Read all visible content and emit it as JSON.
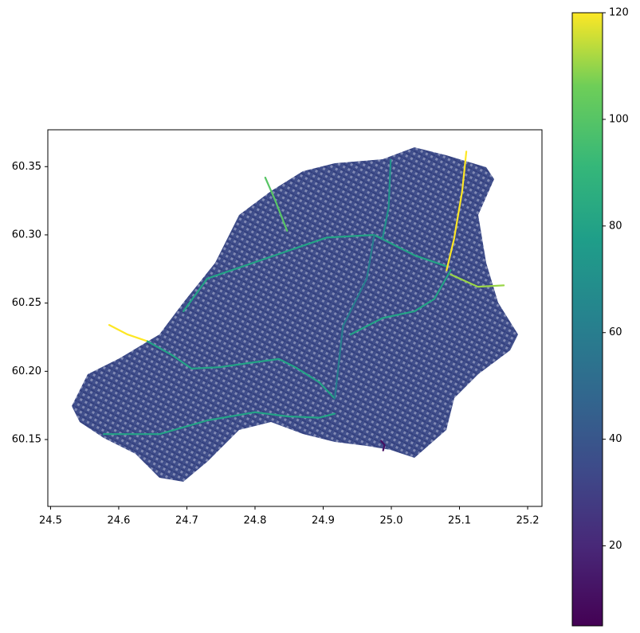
{
  "chart_data": {
    "type": "roads",
    "xlim": [
      24.496,
      25.221
    ],
    "ylim": [
      60.101,
      60.377
    ],
    "xticks": [
      {
        "value": 24.5,
        "label": "24.5"
      },
      {
        "value": 24.6,
        "label": "24.6"
      },
      {
        "value": 24.7,
        "label": "24.7"
      },
      {
        "value": 24.8,
        "label": "24.8"
      },
      {
        "value": 24.9,
        "label": "24.9"
      },
      {
        "value": 25.0,
        "label": "25.0"
      },
      {
        "value": 25.1,
        "label": "25.1"
      },
      {
        "value": 25.2,
        "label": "25.2"
      }
    ],
    "yticks": [
      {
        "value": 60.15,
        "label": "60.15"
      },
      {
        "value": 60.2,
        "label": "60.20"
      },
      {
        "value": 60.25,
        "label": "60.25"
      },
      {
        "value": 60.3,
        "label": "60.30"
      },
      {
        "value": 60.35,
        "label": "60.35"
      }
    ],
    "clim": [
      5,
      120
    ],
    "cticks": [
      20,
      40,
      60,
      80,
      100,
      120
    ],
    "colormap": "viridis",
    "roads": [
      {
        "speed": 120,
        "x": [
          24.586,
          24.613,
          24.642
        ],
        "y": [
          60.234,
          60.227,
          60.222
        ]
      },
      {
        "speed": 80,
        "x": [
          24.642,
          24.678,
          24.707,
          24.748,
          24.789,
          24.835,
          24.859,
          24.894,
          24.917
        ],
        "y": [
          60.222,
          60.212,
          60.202,
          60.203,
          60.206,
          60.209,
          60.203,
          60.192,
          60.18
        ]
      },
      {
        "speed": 80,
        "x": [
          24.578,
          24.66,
          24.73,
          24.8,
          24.847,
          24.894,
          24.917
        ],
        "y": [
          60.154,
          60.154,
          60.164,
          60.17,
          60.167,
          60.166,
          60.169
        ]
      },
      {
        "speed": 80,
        "x": [
          24.695,
          24.73,
          24.777,
          24.835,
          24.905,
          24.975,
          25.034,
          25.081
        ],
        "y": [
          60.244,
          60.268,
          60.276,
          60.286,
          60.298,
          60.3,
          60.285,
          60.277
        ]
      },
      {
        "speed": 120,
        "x": [
          25.11,
          25.104,
          25.092,
          25.081
        ],
        "y": [
          60.361,
          60.332,
          60.297,
          60.274
        ]
      },
      {
        "speed": 100,
        "x": [
          24.815,
          24.829,
          24.847
        ],
        "y": [
          60.342,
          60.326,
          60.303
        ]
      },
      {
        "speed": 110,
        "x": [
          25.087,
          25.127,
          25.165
        ],
        "y": [
          60.271,
          60.262,
          60.263
        ]
      },
      {
        "speed": 80,
        "x": [
          24.94,
          24.987,
          25.034,
          25.063,
          25.087
        ],
        "y": [
          60.227,
          60.239,
          60.244,
          60.253,
          60.274
        ]
      },
      {
        "speed": 70,
        "x": [
          24.999,
          24.996,
          24.987
        ],
        "y": [
          60.355,
          60.32,
          60.297
        ]
      },
      {
        "speed": 60,
        "x": [
          24.975,
          24.964,
          24.929,
          24.917
        ],
        "y": [
          60.3,
          60.268,
          60.233,
          60.18
        ]
      },
      {
        "speed": 10,
        "x": [
          24.985,
          24.99,
          24.988
        ],
        "y": [
          60.149,
          60.146,
          60.142
        ]
      }
    ]
  }
}
